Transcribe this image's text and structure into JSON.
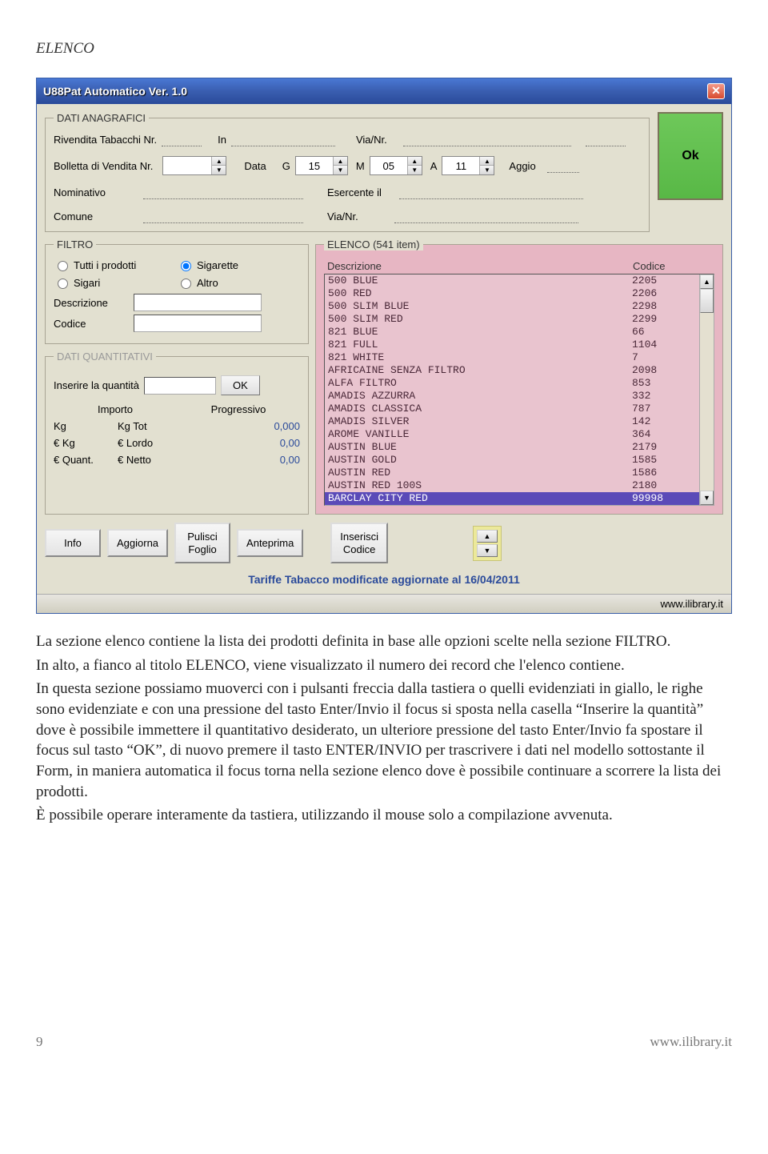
{
  "doc": {
    "sectionTitle": "ELENCO",
    "pageNumber": "9",
    "footerSite": "www.ilibrary.it",
    "paragraphs": [
      "La sezione elenco contiene la lista dei prodotti definita in base alle opzioni scelte nella sezione FILTRO.",
      "In alto, a fianco al titolo ELENCO, viene visualizzato il numero dei record che l'elenco contiene.",
      "In questa sezione possiamo muoverci con i pulsanti freccia dalla tastiera o quelli evidenziati in giallo, le righe sono evidenziate e con una pressione del tasto Enter/Invio il focus si sposta nella casella “Inserire la quantità” dove è possibile immettere il quantitativo desiderato, un ulteriore pressione del tasto Enter/Invio fa spostare il focus sul tasto “OK”, di nuovo premere il tasto ENTER/INVIO per trascrivere i dati nel modello sottostante il Form, in maniera automatica il focus torna nella sezione elenco dove è possibile continuare a scorrere la lista dei prodotti.",
      "È possibile operare interamente da tastiera, utilizzando il mouse solo a compilazione avvenuta."
    ]
  },
  "win": {
    "title": "U88Pat Automatico Ver. 1.0",
    "footer": "www.ilibrary.it",
    "tariffe": "Tariffe Tabacco modificate aggiornate al 16/04/2011",
    "ok": "Ok"
  },
  "anag": {
    "legend": "DATI ANAGRAFICI",
    "rivendita": "Rivendita Tabacchi Nr.",
    "in": "In",
    "vianr": "Via/Nr.",
    "bolletta": "Bolletta di Vendita Nr.",
    "data": "Data",
    "g": "G",
    "gVal": "15",
    "m": "M",
    "mVal": "05",
    "a": "A",
    "aVal": "11",
    "aggio": "Aggio",
    "nominativo": "Nominativo",
    "esercente": "Esercente il",
    "comune": "Comune"
  },
  "filtro": {
    "legend": "FILTRO",
    "tutti": "Tutti i prodotti",
    "sigarette": "Sigarette",
    "sigari": "Sigari",
    "altro": "Altro",
    "descr": "Descrizione",
    "codice": "Codice"
  },
  "quant": {
    "legend": "DATI QUANTITATIVI",
    "inserire": "Inserire la quantità",
    "ok": "OK",
    "importo": "Importo",
    "progressivo": "Progressivo",
    "kg": "Kg",
    "kgtot": "Kg Tot",
    "kgval": "0,000",
    "ekg": "€ Kg",
    "elordo": "€ Lordo",
    "elordoval": "0,00",
    "equant": "€ Quant.",
    "enetto": "€ Netto",
    "enettoval": "0,00"
  },
  "elenco": {
    "legend": "ELENCO (541 item)",
    "colDescr": "Descrizione",
    "colCod": "Codice",
    "rows": [
      {
        "d": "500 BLUE",
        "c": "2205"
      },
      {
        "d": "500 RED",
        "c": "2206"
      },
      {
        "d": "500 SLIM BLUE",
        "c": "2298"
      },
      {
        "d": "500 SLIM RED",
        "c": "2299"
      },
      {
        "d": "821 BLUE",
        "c": "66"
      },
      {
        "d": "821 FULL",
        "c": "1104"
      },
      {
        "d": "821 WHITE",
        "c": "7"
      },
      {
        "d": "AFRICAINE SENZA FILTRO",
        "c": "2098"
      },
      {
        "d": "ALFA FILTRO",
        "c": "853"
      },
      {
        "d": "AMADIS AZZURRA",
        "c": "332"
      },
      {
        "d": "AMADIS CLASSICA",
        "c": "787"
      },
      {
        "d": "AMADIS SILVER",
        "c": "142"
      },
      {
        "d": "AROME VANILLE",
        "c": "364"
      },
      {
        "d": "AUSTIN BLUE",
        "c": "2179"
      },
      {
        "d": "AUSTIN GOLD",
        "c": "1585"
      },
      {
        "d": "AUSTIN RED",
        "c": "1586"
      },
      {
        "d": "AUSTIN RED 100S",
        "c": "2180"
      },
      {
        "d": "BARCLAY CITY RED",
        "c": "99998",
        "sel": true
      }
    ]
  },
  "buttons": {
    "info": "Info",
    "aggiorna": "Aggiorna",
    "pulisci": "Pulisci\nFoglio",
    "anteprima": "Anteprima",
    "inserisci": "Inserisci\nCodice"
  }
}
